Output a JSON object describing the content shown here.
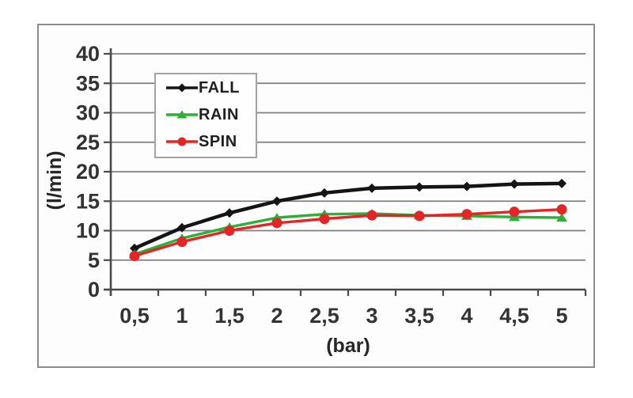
{
  "chart_data": {
    "type": "line",
    "title": "",
    "xlabel": "(bar)",
    "ylabel": "(l/min)",
    "x": [
      0.5,
      1,
      1.5,
      2,
      2.5,
      3,
      3.5,
      4,
      4.5,
      5
    ],
    "x_tick_labels": [
      "0,5",
      "1",
      "1,5",
      "2",
      "2,5",
      "3",
      "3,5",
      "4",
      "4,5",
      "5"
    ],
    "y_ticks": [
      0,
      5,
      10,
      15,
      20,
      25,
      30,
      35,
      40
    ],
    "ylim": [
      0,
      40
    ],
    "grid": true,
    "legend_position": "upper-left-inside",
    "series": [
      {
        "name": "FALL",
        "color": "#141414",
        "marker": "diamond",
        "values": [
          7.0,
          10.5,
          13.0,
          15.0,
          16.4,
          17.2,
          17.4,
          17.5,
          17.9,
          18.0
        ]
      },
      {
        "name": "RAIN",
        "color": "#2fae38",
        "marker": "triangle",
        "values": [
          6.0,
          8.7,
          10.6,
          12.2,
          12.8,
          12.9,
          12.6,
          12.5,
          12.3,
          12.2
        ]
      },
      {
        "name": "SPIN",
        "color": "#e22526",
        "marker": "circle",
        "values": [
          5.7,
          8.1,
          10.0,
          11.3,
          12.0,
          12.6,
          12.5,
          12.8,
          13.2,
          13.6
        ]
      }
    ]
  },
  "colors": {
    "gridline": "#7f7f7f",
    "axis": "#4a4a4a",
    "tick_label": "#333333",
    "figure_border": "#8c8c8c",
    "legend_border": "#a3a3a3",
    "background": "#ffffff"
  }
}
